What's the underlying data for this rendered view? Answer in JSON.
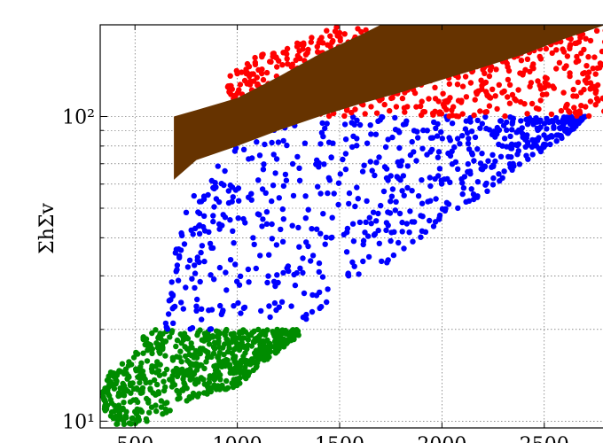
{
  "chart_data": {
    "type": "scatter",
    "title": "",
    "xlabel": "",
    "ylabel": "ΣhΣv",
    "y_scale": "log",
    "xlim": [
      330,
      2800
    ],
    "ylim": [
      9.5,
      200
    ],
    "grid": true,
    "x_ticks": [
      "500",
      "1000",
      "1500",
      "2000",
      "2500",
      "3000",
      "3500"
    ],
    "x_tick_values": [
      500,
      1000,
      1500,
      2000,
      2500,
      3000,
      3500
    ],
    "y_ticks": [
      "10¹",
      "10²"
    ],
    "y_tick_values": [
      10,
      100
    ],
    "y_minor_ticks": [
      20,
      30,
      40,
      50,
      60,
      70,
      80,
      90
    ],
    "series": [
      {
        "color": "#008c00",
        "y_range": [
          9.5,
          20
        ],
        "lower_bound": [
          [
            340,
            11
          ],
          [
            420,
            9.5
          ],
          [
            560,
            10
          ],
          [
            700,
            11
          ],
          [
            800,
            12
          ],
          [
            1000,
            13
          ],
          [
            1100,
            15
          ],
          [
            1200,
            17
          ],
          [
            1300,
            19
          ]
        ],
        "upper_bound": [
          [
            340,
            14
          ],
          [
            420,
            15
          ],
          [
            560,
            20
          ],
          [
            1300,
            20
          ]
        ]
      },
      {
        "color": "#0000ff",
        "y_range": [
          20,
          100
        ],
        "lower_bound": [
          [
            700,
            20
          ],
          [
            1000,
            20
          ],
          [
            1200,
            20
          ],
          [
            1400,
            22
          ],
          [
            1600,
            28
          ],
          [
            1800,
            36
          ],
          [
            2000,
            45
          ],
          [
            2200,
            55
          ],
          [
            2400,
            70
          ],
          [
            2600,
            85
          ],
          [
            2700,
            100
          ]
        ],
        "upper_bound": [
          [
            650,
            22
          ],
          [
            700,
            40
          ],
          [
            800,
            60
          ],
          [
            900,
            70
          ],
          [
            1000,
            80
          ],
          [
            1100,
            100
          ],
          [
            2700,
            100
          ]
        ]
      },
      {
        "color": "#ff0000",
        "y_range": [
          100,
          200
        ],
        "lower_bound": [
          [
            950,
            100
          ],
          [
            2800,
            100
          ]
        ],
        "upper_bound": [
          [
            950,
            140
          ],
          [
            1100,
            160
          ],
          [
            1300,
            175
          ],
          [
            1500,
            200
          ],
          [
            2800,
            200
          ]
        ]
      }
    ],
    "band": {
      "color": "#663300",
      "upper": [
        [
          690,
          100
        ],
        [
          800,
          105
        ],
        [
          1000,
          115
        ],
        [
          1200,
          135
        ],
        [
          1400,
          160
        ],
        [
          1600,
          185
        ],
        [
          1700,
          200
        ],
        [
          2800,
          200
        ]
      ],
      "lower": [
        [
          690,
          62
        ],
        [
          800,
          72
        ],
        [
          1000,
          80
        ],
        [
          1200,
          90
        ],
        [
          1400,
          100
        ],
        [
          1600,
          110
        ],
        [
          1800,
          120
        ],
        [
          2000,
          132
        ],
        [
          2200,
          145
        ],
        [
          2400,
          160
        ],
        [
          2600,
          180
        ],
        [
          2800,
          200
        ]
      ]
    }
  }
}
